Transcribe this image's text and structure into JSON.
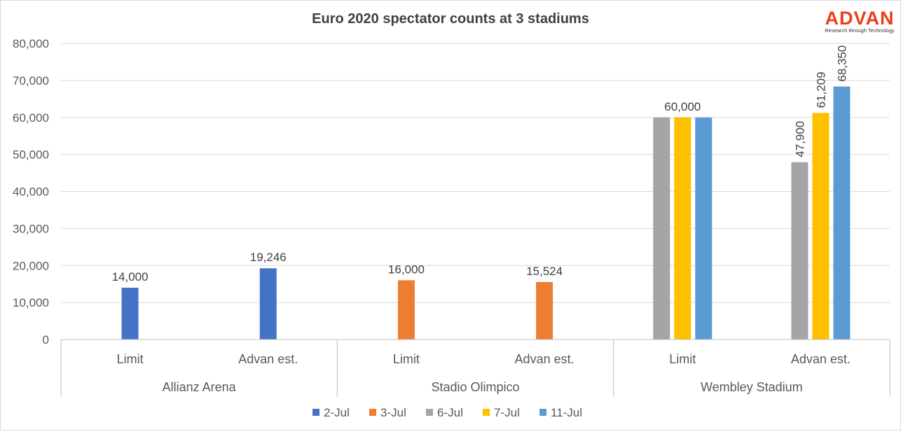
{
  "chart_data": {
    "type": "bar",
    "title": "Euro 2020 spectator counts at 3 stadiums",
    "xlabel": "",
    "ylabel": "",
    "ylim": [
      0,
      80000
    ],
    "yticks": [
      0,
      10000,
      20000,
      30000,
      40000,
      50000,
      60000,
      70000,
      80000
    ],
    "ytick_labels": [
      "0",
      "10,000",
      "20,000",
      "30,000",
      "40,000",
      "50,000",
      "60,000",
      "70,000",
      "80,000"
    ],
    "grid": true,
    "legend_position": "bottom",
    "groups": [
      {
        "label": "Allianz Arena",
        "categories": [
          "Limit",
          "Advan est."
        ]
      },
      {
        "label": "Stadio Olimpico",
        "categories": [
          "Limit",
          "Advan est."
        ]
      },
      {
        "label": "Wembley Stadium",
        "categories": [
          "Limit",
          "Advan est."
        ]
      }
    ],
    "categories": [
      "Allianz Arena | Limit",
      "Allianz Arena | Advan est.",
      "Stadio Olimpico | Limit",
      "Stadio Olimpico | Advan est.",
      "Wembley Stadium | Limit",
      "Wembley Stadium | Advan est."
    ],
    "series": [
      {
        "name": "2-Jul",
        "color": "#4472C4",
        "values": [
          14000,
          19246,
          null,
          null,
          null,
          null
        ]
      },
      {
        "name": "3-Jul",
        "color": "#ED7D31",
        "values": [
          null,
          null,
          16000,
          15524,
          null,
          null
        ]
      },
      {
        "name": "6-Jul",
        "color": "#A5A5A5",
        "values": [
          null,
          null,
          null,
          null,
          60000,
          47900
        ]
      },
      {
        "name": "7-Jul",
        "color": "#FFC000",
        "values": [
          null,
          null,
          null,
          null,
          60000,
          61209
        ]
      },
      {
        "name": "11-Jul",
        "color": "#5B9BD5",
        "values": [
          null,
          null,
          null,
          null,
          60000,
          68350
        ]
      }
    ],
    "data_labels": [
      {
        "category": 0,
        "series": "2-Jul",
        "text": "14,000",
        "rotated": false
      },
      {
        "category": 1,
        "series": "2-Jul",
        "text": "19,246",
        "rotated": false
      },
      {
        "category": 2,
        "series": "3-Jul",
        "text": "16,000",
        "rotated": false
      },
      {
        "category": 3,
        "series": "3-Jul",
        "text": "15,524",
        "rotated": false
      },
      {
        "category": 4,
        "series": "7-Jul",
        "text": "60,000",
        "rotated": false
      },
      {
        "category": 5,
        "series": "6-Jul",
        "text": "47,900",
        "rotated": true
      },
      {
        "category": 5,
        "series": "7-Jul",
        "text": "61,209",
        "rotated": true
      },
      {
        "category": 5,
        "series": "11-Jul",
        "text": "68,350",
        "rotated": true
      }
    ]
  },
  "logo": {
    "name": "ADVAN",
    "tagline": "Research through Technology",
    "color": "#E8401C"
  }
}
